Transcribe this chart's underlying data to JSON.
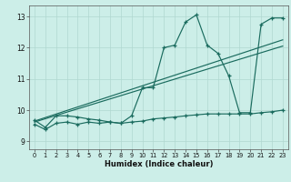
{
  "xlabel": "Humidex (Indice chaleur)",
  "bg_color": "#cceee8",
  "line_color": "#1a6b5e",
  "grid_color": "#b0d8d0",
  "xlim": [
    -0.5,
    23.5
  ],
  "ylim": [
    8.75,
    13.35
  ],
  "yticks": [
    9,
    10,
    11,
    12,
    13
  ],
  "xticks": [
    0,
    1,
    2,
    3,
    4,
    5,
    6,
    7,
    8,
    9,
    10,
    11,
    12,
    13,
    14,
    15,
    16,
    17,
    18,
    19,
    20,
    21,
    22,
    23
  ],
  "series_peak_x": [
    0,
    1,
    2,
    3,
    4,
    5,
    6,
    7,
    8,
    9,
    10,
    11,
    12,
    13,
    14,
    15,
    16,
    17,
    18,
    19,
    20,
    21,
    22,
    23
  ],
  "series_peak_y": [
    9.68,
    9.45,
    9.82,
    9.82,
    9.78,
    9.72,
    9.68,
    9.62,
    9.58,
    9.82,
    10.72,
    10.72,
    12.0,
    12.08,
    12.82,
    13.05,
    12.08,
    11.82,
    11.1,
    9.92,
    9.92,
    12.75,
    12.95,
    12.95
  ],
  "series_flat_x": [
    0,
    1,
    2,
    3,
    4,
    5,
    6,
    7,
    8,
    9,
    10,
    11,
    12,
    13,
    14,
    15,
    16,
    17,
    18,
    19,
    20,
    21,
    22,
    23
  ],
  "series_flat_y": [
    9.55,
    9.38,
    9.58,
    9.62,
    9.55,
    9.62,
    9.58,
    9.62,
    9.58,
    9.62,
    9.65,
    9.72,
    9.75,
    9.78,
    9.82,
    9.85,
    9.88,
    9.88,
    9.88,
    9.88,
    9.88,
    9.92,
    9.95,
    10.0
  ],
  "trend1_x": [
    0,
    23
  ],
  "trend1_y": [
    9.65,
    12.25
  ],
  "trend2_x": [
    0,
    23
  ],
  "trend2_y": [
    9.62,
    12.05
  ]
}
